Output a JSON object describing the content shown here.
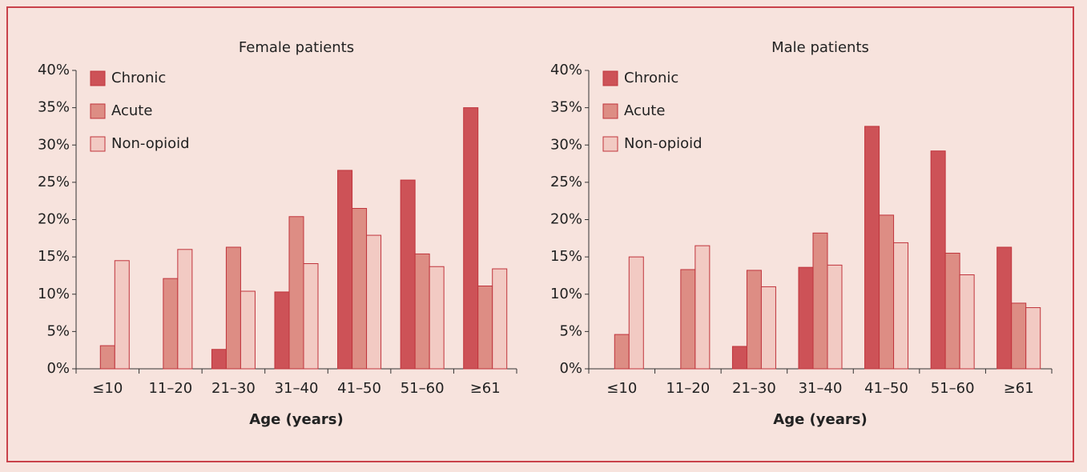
{
  "chart_data": [
    {
      "type": "bar",
      "title": "Female patients",
      "x_label": "Age (years)",
      "categories": [
        "≤10",
        "11–20",
        "21–30",
        "31–40",
        "41–50",
        "51–60",
        "≥61"
      ],
      "series": [
        {
          "name": "Chronic",
          "color": "#cd5257",
          "values": [
            0,
            0,
            2.6,
            10.3,
            26.6,
            25.3,
            35
          ]
        },
        {
          "name": "Acute",
          "color": "#dd8d84",
          "values": [
            3.1,
            12.1,
            16.3,
            20.4,
            21.5,
            15.4,
            11.1
          ]
        },
        {
          "name": "Non-opioid",
          "color": "#f2cac3",
          "values": [
            14.5,
            16,
            10.4,
            14.1,
            17.9,
            13.7,
            13.4
          ]
        }
      ],
      "ylim": [
        0,
        40
      ],
      "yticks": [
        {
          "value": 0,
          "label": "0%"
        },
        {
          "value": 5,
          "label": "5%"
        },
        {
          "value": 10,
          "label": "10%"
        },
        {
          "value": 15,
          "label": "15%"
        },
        {
          "value": 20,
          "label": "20%"
        },
        {
          "value": 25,
          "label": "25%"
        },
        {
          "value": 30,
          "label": "30%"
        },
        {
          "value": 35,
          "label": "35%"
        },
        {
          "value": 40,
          "label": "40%"
        }
      ],
      "legend": "upper left"
    },
    {
      "type": "bar",
      "title": "Male patients",
      "x_label": "Age (years)",
      "categories": [
        "≤10",
        "11–20",
        "21–30",
        "31–40",
        "41–50",
        "51–60",
        "≥61"
      ],
      "series": [
        {
          "name": "Chronic",
          "color": "#cd5257",
          "values": [
            0,
            0,
            3.0,
            13.6,
            32.5,
            29.2,
            16.3
          ]
        },
        {
          "name": "Acute",
          "color": "#dd8d84",
          "values": [
            4.6,
            13.3,
            13.2,
            18.2,
            20.6,
            15.5,
            8.8
          ]
        },
        {
          "name": "Non-opioid",
          "color": "#f2cac3",
          "values": [
            15.0,
            16.5,
            11.0,
            13.9,
            16.9,
            12.6,
            8.2
          ]
        }
      ],
      "ylim": [
        0,
        40
      ],
      "yticks": [
        {
          "value": 0,
          "label": "0%"
        },
        {
          "value": 5,
          "label": "5%"
        },
        {
          "value": 10,
          "label": "10%"
        },
        {
          "value": 15,
          "label": "15%"
        },
        {
          "value": 20,
          "label": "20%"
        },
        {
          "value": 25,
          "label": "25%"
        },
        {
          "value": 30,
          "label": "30%"
        },
        {
          "value": 35,
          "label": "35%"
        },
        {
          "value": 40,
          "label": "40%"
        }
      ],
      "legend": "upper left"
    }
  ]
}
